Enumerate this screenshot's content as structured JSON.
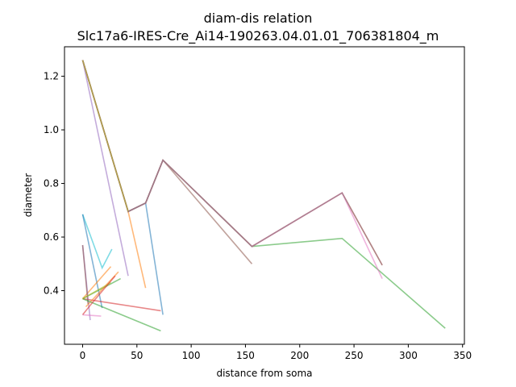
{
  "chart_data": {
    "type": "line",
    "title": "diam-dis relation",
    "subtitle": "Slc17a6-IRES-Cre_Ai14-190263.04.01.01_706381804_m",
    "xlabel": "distance from soma",
    "ylabel": "diameter",
    "xlim": [
      -16.7,
      351.7
    ],
    "ylim": [
      0.2,
      1.31
    ],
    "x_ticks": [
      0,
      50,
      100,
      150,
      200,
      250,
      300,
      350
    ],
    "y_ticks": [
      0.4,
      0.6,
      0.8,
      1.0,
      1.2
    ],
    "x_tick_labels": [
      "0",
      "50",
      "100",
      "150",
      "200",
      "250",
      "300",
      "350"
    ],
    "y_tick_labels": [
      "0.4",
      "0.6",
      "0.8",
      "1.0",
      "1.2"
    ],
    "grid": false,
    "series": [
      {
        "color": "#1f77b4",
        "points": [
          [
            0,
            1.26
          ],
          [
            42,
            0.695
          ],
          [
            58,
            0.727
          ],
          [
            74,
            0.31
          ]
        ]
      },
      {
        "color": "#ff7f0e",
        "points": [
          [
            0,
            1.26
          ],
          [
            42,
            0.695
          ],
          [
            58,
            0.41
          ]
        ]
      },
      {
        "color": "#2ca02c",
        "points": [
          [
            0,
            1.26
          ],
          [
            42,
            0.695
          ],
          [
            58,
            0.727
          ],
          [
            74,
            0.887
          ],
          [
            156,
            0.565
          ],
          [
            239,
            0.595
          ],
          [
            334,
            0.26
          ]
        ]
      },
      {
        "color": "#d62728",
        "points": [
          [
            0,
            1.26
          ],
          [
            42,
            0.695
          ],
          [
            58,
            0.727
          ],
          [
            74,
            0.887
          ],
          [
            156,
            0.565
          ],
          [
            239,
            0.765
          ],
          [
            276,
            0.495
          ]
        ]
      },
      {
        "color": "#9467bd",
        "points": [
          [
            0,
            1.26
          ],
          [
            42,
            0.455
          ]
        ]
      },
      {
        "color": "#8c564b",
        "points": [
          [
            0,
            1.26
          ],
          [
            42,
            0.695
          ],
          [
            58,
            0.727
          ],
          [
            74,
            0.887
          ],
          [
            156,
            0.5
          ]
        ]
      },
      {
        "color": "#e377c2",
        "points": [
          [
            0,
            1.26
          ],
          [
            42,
            0.695
          ],
          [
            58,
            0.727
          ],
          [
            74,
            0.887
          ],
          [
            156,
            0.565
          ],
          [
            239,
            0.765
          ],
          [
            276,
            0.445
          ]
        ]
      },
      {
        "color": "#7f7f7f",
        "points": [
          [
            0,
            1.26
          ],
          [
            42,
            0.695
          ],
          [
            58,
            0.727
          ],
          [
            74,
            0.887
          ],
          [
            156,
            0.565
          ],
          [
            239,
            0.765
          ],
          [
            276,
            0.495
          ]
        ]
      },
      {
        "color": "#bcbd22",
        "points": [
          [
            0,
            1.26
          ],
          [
            42,
            0.695
          ]
        ]
      },
      {
        "color": "#17becf",
        "points": [
          [
            0,
            0.685
          ],
          [
            18,
            0.485
          ],
          [
            27,
            0.555
          ]
        ]
      },
      {
        "color": "#1f77b4",
        "points": [
          [
            0,
            0.685
          ],
          [
            18,
            0.335
          ]
        ]
      },
      {
        "color": "#ff7f0e",
        "points": [
          [
            0,
            0.37
          ],
          [
            26,
            0.49
          ]
        ]
      },
      {
        "color": "#2ca02c",
        "points": [
          [
            0,
            0.37
          ],
          [
            35,
            0.445
          ]
        ]
      },
      {
        "color": "#d62728",
        "points": [
          [
            0,
            0.37
          ],
          [
            72,
            0.325
          ]
        ]
      },
      {
        "color": "#9467bd",
        "points": [
          [
            0,
            0.57
          ],
          [
            7,
            0.29
          ]
        ]
      },
      {
        "color": "#8c564b",
        "points": [
          [
            0,
            0.57
          ],
          [
            5,
            0.35
          ]
        ]
      },
      {
        "color": "#e377c2",
        "points": [
          [
            0,
            0.31
          ],
          [
            17,
            0.305
          ]
        ]
      },
      {
        "color": "#ff7f0e",
        "points": [
          [
            3,
            0.34
          ],
          [
            33,
            0.47
          ]
        ]
      },
      {
        "color": "#2ca02c",
        "points": [
          [
            0,
            0.37
          ],
          [
            72,
            0.25
          ]
        ]
      },
      {
        "color": "#bcbd22",
        "points": [
          [
            0,
            0.37
          ],
          [
            26,
            0.43
          ]
        ]
      },
      {
        "color": "#d62728",
        "points": [
          [
            0,
            0.31
          ],
          [
            10,
            0.36
          ],
          [
            30,
            0.455
          ]
        ]
      }
    ]
  }
}
